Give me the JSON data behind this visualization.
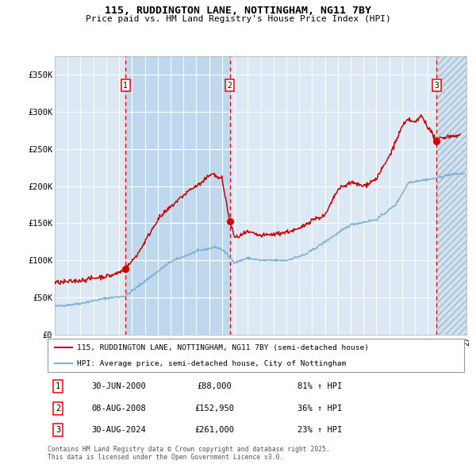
{
  "title_line1": "115, RUDDINGTON LANE, NOTTINGHAM, NG11 7BY",
  "title_line2": "Price paid vs. HM Land Registry's House Price Index (HPI)",
  "bg_color": "#ffffff",
  "plot_bg_color": "#dce9f5",
  "grid_color": "#ffffff",
  "hpi_color": "#7bafd4",
  "price_color": "#cc0000",
  "highlight_color": "#c0d8ee",
  "purchases": [
    {
      "date_num": 2000.5,
      "price": 88000,
      "label": "1",
      "pct": "81% ↑ HPI",
      "date_str": "30-JUN-2000"
    },
    {
      "date_num": 2008.6,
      "price": 152950,
      "label": "2",
      "pct": "36% ↑ HPI",
      "date_str": "08-AUG-2008"
    },
    {
      "date_num": 2024.67,
      "price": 261000,
      "label": "3",
      "pct": "23% ↑ HPI",
      "date_str": "30-AUG-2024"
    }
  ],
  "xmin": 1995,
  "xmax": 2027,
  "ymin": 0,
  "ymax": 375000,
  "yticks": [
    0,
    50000,
    100000,
    150000,
    200000,
    250000,
    300000,
    350000
  ],
  "ytick_labels": [
    "£0",
    "£50K",
    "£100K",
    "£150K",
    "£200K",
    "£250K",
    "£300K",
    "£350K"
  ],
  "legend_line1": "115, RUDDINGTON LANE, NOTTINGHAM, NG11 7BY (semi-detached house)",
  "legend_line2": "HPI: Average price, semi-detached house, City of Nottingham",
  "footnote": "Contains HM Land Registry data © Crown copyright and database right 2025.\nThis data is licensed under the Open Government Licence v3.0."
}
